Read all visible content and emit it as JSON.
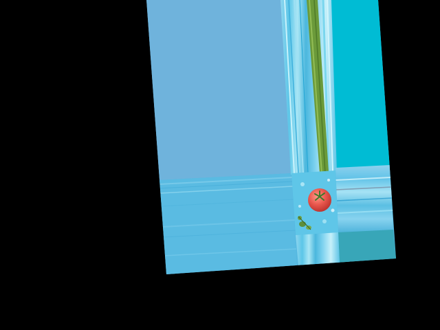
{
  "scene": {
    "background_color": "#000000",
    "panel_colors": {
      "upper_left_block": "#6fb3dc",
      "lower_left_block": "#56b8e0",
      "right_block": "#00bcd4",
      "bottom_right_block": "#38a6b8",
      "stem": "#6b9a3a",
      "tomato": "#e9584e"
    },
    "objects": [
      {
        "name": "tomato",
        "icon": "tomato-icon"
      },
      {
        "name": "herb sprig",
        "icon": "herb-icon"
      }
    ]
  }
}
